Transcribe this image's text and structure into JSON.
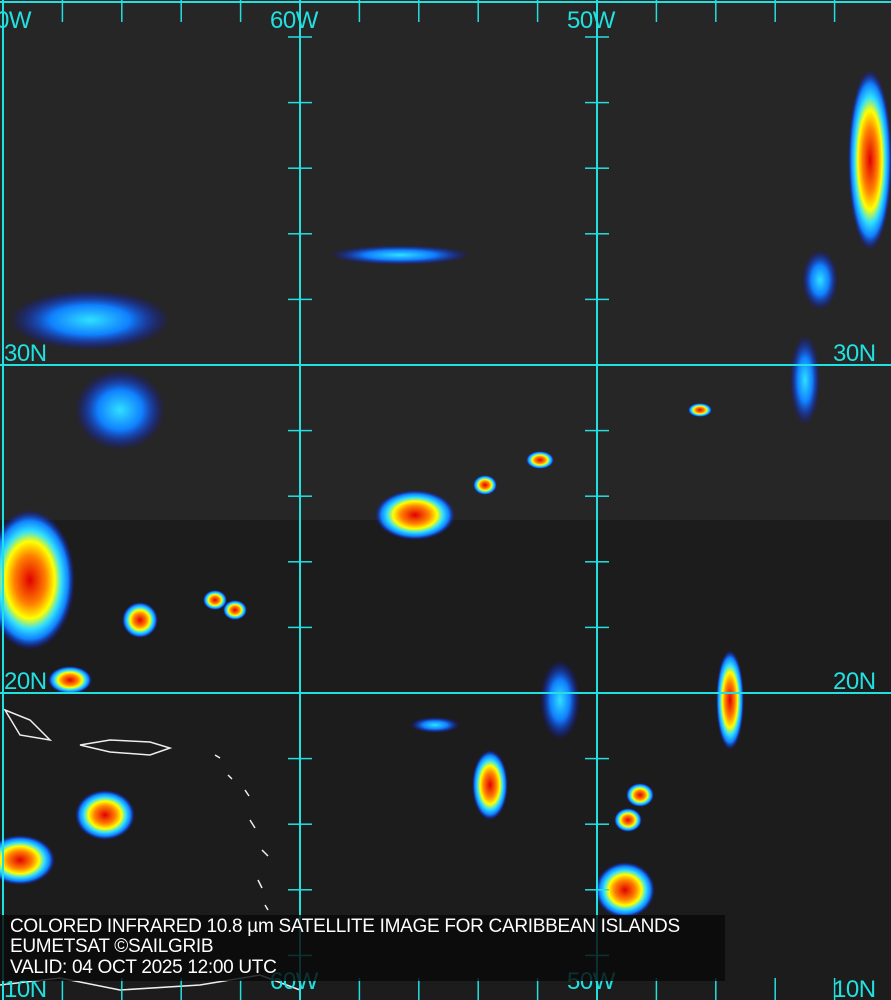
{
  "caption": {
    "title": "COLORED INFRARED 10.8 µm SATELLITE IMAGE FOR CARIBBEAN ISLANDS",
    "credit": "EUMETSAT ©SAILGRIB",
    "valid": "VALID:  04 OCT 2025 12:00 UTC"
  },
  "grid": {
    "color": "#22e0e0",
    "top_labels": [
      "0W",
      "60W",
      "50W"
    ],
    "bottom_labels": [
      "10N",
      "60W",
      "50W",
      "10N"
    ],
    "left_labels": [
      "30N",
      "20N"
    ],
    "right_labels": [
      "30N",
      "20N"
    ]
  },
  "palette": [
    "#1010e0",
    "#1080ff",
    "#30e0ff",
    "#ffff00",
    "#ff8000",
    "#e00000"
  ]
}
